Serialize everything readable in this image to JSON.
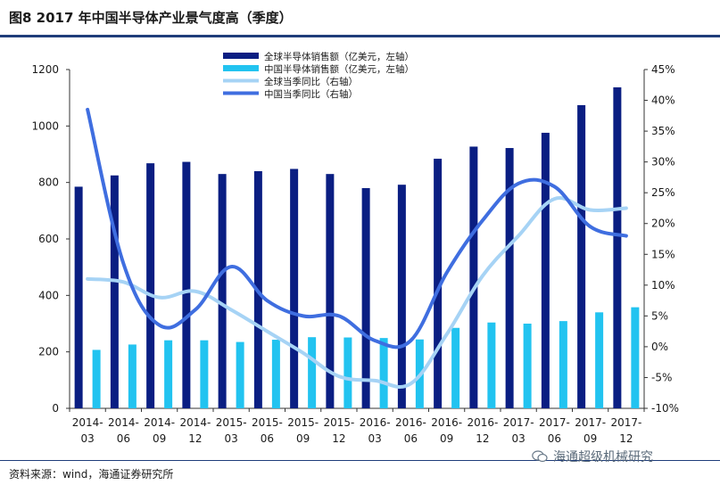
{
  "header": {
    "title": "图8  2017 年中国半导体产业景气度高（季度）"
  },
  "footer": {
    "source": "资料来源：wind，海通证券研究所",
    "watermark": "海通超级机械研究"
  },
  "icons": {
    "watermark": "wechat-logo-icon"
  },
  "chart_data": {
    "type": "bar",
    "categories": [
      "2014-03",
      "2014-06",
      "2014-09",
      "2014-12",
      "2015-03",
      "2015-06",
      "2015-09",
      "2015-12",
      "2016-03",
      "2016-06",
      "2016-09",
      "2016-12",
      "2017-03",
      "2017-06",
      "2017-09",
      "2017-12"
    ],
    "x_tick_labels": [
      [
        "2014-",
        "03"
      ],
      [
        "2014-",
        "06"
      ],
      [
        "2014-",
        "09"
      ],
      [
        "2014-",
        "12"
      ],
      [
        "2015-",
        "03"
      ],
      [
        "2015-",
        "06"
      ],
      [
        "2015-",
        "09"
      ],
      [
        "2015-",
        "12"
      ],
      [
        "2016-",
        "03"
      ],
      [
        "2016-",
        "06"
      ],
      [
        "2016-",
        "09"
      ],
      [
        "2016-",
        "12"
      ],
      [
        "2017-",
        "03"
      ],
      [
        "2017-",
        "06"
      ],
      [
        "2017-",
        "09"
      ],
      [
        "2017-",
        "12"
      ]
    ],
    "left_axis": {
      "ylim": [
        0,
        1200
      ],
      "ticks": [
        "0",
        "200",
        "400",
        "600",
        "800",
        "1000",
        "1200"
      ]
    },
    "right_axis": {
      "ylim": [
        -10,
        45
      ],
      "ticks": [
        "-10%",
        "-5%",
        "0%",
        "5%",
        "10%",
        "15%",
        "20%",
        "25%",
        "30%",
        "35%",
        "40%",
        "45%"
      ]
    },
    "series": [
      {
        "name": "全球半导体销售额（亿美元，左轴）",
        "type": "bar",
        "axis": "left",
        "color": "#0a1e82",
        "values": [
          785,
          825,
          868,
          873,
          830,
          840,
          848,
          830,
          780,
          792,
          884,
          927,
          922,
          976,
          1074,
          1137
        ]
      },
      {
        "name": "中国半导体销售额（亿美元，左轴）",
        "type": "bar",
        "axis": "left",
        "color": "#22c3f0",
        "values": [
          207,
          226,
          241,
          241,
          235,
          243,
          252,
          251,
          249,
          244,
          285,
          304,
          300,
          309,
          340,
          358
        ]
      },
      {
        "name": "全球当季同比（右轴）",
        "type": "line",
        "axis": "right",
        "color": "#a6d3f5",
        "values": [
          11,
          10.5,
          8,
          9,
          6,
          2.5,
          -1,
          -4.8,
          -5.5,
          -6,
          2,
          11.5,
          18,
          24,
          22.2,
          22.5
        ]
      },
      {
        "name": "中国当季同比（右轴）",
        "type": "line",
        "axis": "right",
        "color": "#3f6ee0",
        "values": [
          38.5,
          13.5,
          3.5,
          6,
          13,
          7.5,
          5,
          5,
          1,
          1,
          12,
          20.5,
          26.5,
          26,
          19.5,
          18
        ]
      }
    ],
    "legend_position": "top-center",
    "grid": false
  }
}
